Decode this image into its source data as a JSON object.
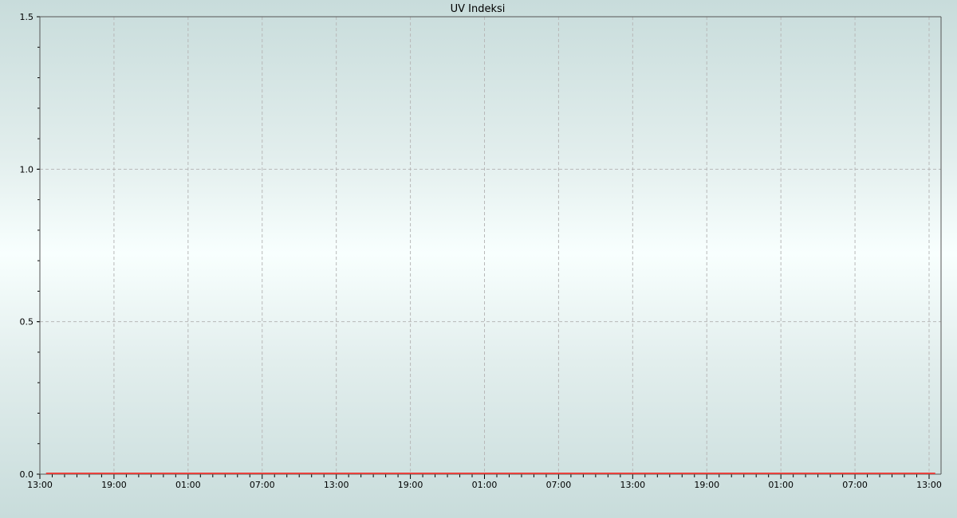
{
  "chart_data": {
    "type": "line",
    "title": "UV Indeksi",
    "xlabel": "",
    "ylabel": "",
    "ylim": [
      0,
      1.5
    ],
    "y_ticks": [
      "0.0",
      "0.5",
      "1.0",
      "1.5"
    ],
    "x_ticks": [
      "13:00",
      "19:00",
      "01:00",
      "07:00",
      "13:00",
      "19:00",
      "01:00",
      "07:00",
      "13:00",
      "19:00",
      "01:00",
      "07:00",
      "13:00"
    ],
    "grid": true,
    "series": [
      {
        "color": "#e8413c",
        "x_start": "13:30",
        "x_end": "13:30",
        "values": [
          0,
          0,
          0,
          0,
          0,
          0,
          0,
          0,
          0,
          0,
          0,
          0,
          0,
          0,
          0,
          0,
          0,
          0,
          0,
          0,
          0,
          0,
          0,
          0,
          0,
          0,
          0,
          0,
          0,
          0,
          0,
          0,
          0,
          0,
          0,
          0,
          0,
          0,
          0,
          0,
          0,
          0,
          0,
          0,
          0,
          0,
          0,
          0,
          0,
          0,
          0,
          0,
          0,
          0,
          0,
          0,
          0,
          0,
          0,
          0,
          0,
          0,
          0,
          0,
          0,
          0,
          0,
          0,
          0,
          0,
          0,
          0,
          0
        ]
      }
    ]
  }
}
